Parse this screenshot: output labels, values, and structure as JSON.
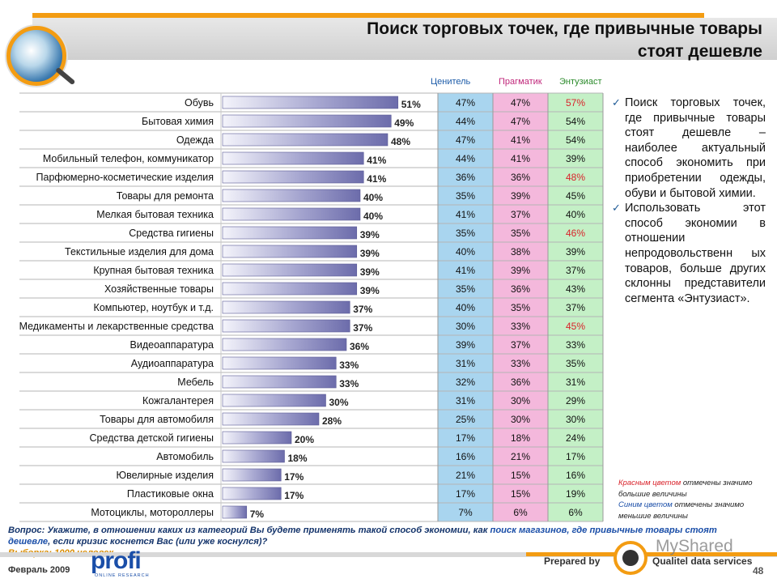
{
  "header": {
    "title_line1": "Поиск торговых точек, где привычные товары",
    "title_line2": "стоят дешевле"
  },
  "chart_data": {
    "type": "bar",
    "orientation": "horizontal",
    "columns": [
      "Ценитель",
      "Прагматик",
      "Энтузиаст"
    ],
    "column_colors": [
      "#a9d5ef",
      "#f4b8dc",
      "#c4f0c6"
    ],
    "bar_color": "#7f7fb7",
    "highlight_color": "#d9232b",
    "rows": [
      {
        "category": "Обувь",
        "value": 51,
        "label": "51%",
        "segments": [
          "47%",
          "47%",
          "57%"
        ],
        "highlight": [
          false,
          false,
          true
        ]
      },
      {
        "category": "Бытовая химия",
        "value": 49,
        "label": "49%",
        "segments": [
          "44%",
          "47%",
          "54%"
        ],
        "highlight": [
          false,
          false,
          false
        ]
      },
      {
        "category": "Одежда",
        "value": 48,
        "label": "48%",
        "segments": [
          "47%",
          "41%",
          "54%"
        ],
        "highlight": [
          false,
          false,
          false
        ]
      },
      {
        "category": "Мобильный телефон, коммуникатор",
        "value": 41,
        "label": "41%",
        "segments": [
          "44%",
          "41%",
          "39%"
        ],
        "highlight": [
          false,
          false,
          false
        ]
      },
      {
        "category": "Парфюмерно-косметические изделия",
        "value": 41,
        "label": "41%",
        "segments": [
          "36%",
          "36%",
          "48%"
        ],
        "highlight": [
          false,
          false,
          true
        ]
      },
      {
        "category": "Товары для ремонта",
        "value": 40,
        "label": "40%",
        "segments": [
          "35%",
          "39%",
          "45%"
        ],
        "highlight": [
          false,
          false,
          false
        ]
      },
      {
        "category": "Мелкая бытовая техника",
        "value": 40,
        "label": "40%",
        "segments": [
          "41%",
          "37%",
          "40%"
        ],
        "highlight": [
          false,
          false,
          false
        ]
      },
      {
        "category": "Средства гигиены",
        "value": 39,
        "label": "39%",
        "segments": [
          "35%",
          "35%",
          "46%"
        ],
        "highlight": [
          false,
          false,
          true
        ]
      },
      {
        "category": "Текстильные изделия для дома",
        "value": 39,
        "label": "39%",
        "segments": [
          "40%",
          "38%",
          "39%"
        ],
        "highlight": [
          false,
          false,
          false
        ]
      },
      {
        "category": "Крупная бытовая техника",
        "value": 39,
        "label": "39%",
        "segments": [
          "41%",
          "39%",
          "37%"
        ],
        "highlight": [
          false,
          false,
          false
        ]
      },
      {
        "category": "Хозяйственные товары",
        "value": 39,
        "label": "39%",
        "segments": [
          "35%",
          "36%",
          "43%"
        ],
        "highlight": [
          false,
          false,
          false
        ]
      },
      {
        "category": "Компьютер, ноутбук и т.д.",
        "value": 37,
        "label": "37%",
        "segments": [
          "40%",
          "35%",
          "37%"
        ],
        "highlight": [
          false,
          false,
          false
        ]
      },
      {
        "category": "Медикаменты и лекарственные средства",
        "value": 37,
        "label": "37%",
        "segments": [
          "30%",
          "33%",
          "45%"
        ],
        "highlight": [
          false,
          false,
          true
        ]
      },
      {
        "category": "Видеоаппаратура",
        "value": 36,
        "label": "36%",
        "segments": [
          "39%",
          "37%",
          "33%"
        ],
        "highlight": [
          false,
          false,
          false
        ]
      },
      {
        "category": "Аудиоаппаратура",
        "value": 33,
        "label": "33%",
        "segments": [
          "31%",
          "33%",
          "35%"
        ],
        "highlight": [
          false,
          false,
          false
        ]
      },
      {
        "category": "Мебель",
        "value": 33,
        "label": "33%",
        "segments": [
          "32%",
          "36%",
          "31%"
        ],
        "highlight": [
          false,
          false,
          false
        ]
      },
      {
        "category": "Кожгалантерея",
        "value": 30,
        "label": "30%",
        "segments": [
          "31%",
          "30%",
          "29%"
        ],
        "highlight": [
          false,
          false,
          false
        ]
      },
      {
        "category": "Товары для автомобиля",
        "value": 28,
        "label": "28%",
        "segments": [
          "25%",
          "30%",
          "30%"
        ],
        "highlight": [
          false,
          false,
          false
        ]
      },
      {
        "category": "Средства детской гигиены",
        "value": 20,
        "label": "20%",
        "segments": [
          "17%",
          "18%",
          "24%"
        ],
        "highlight": [
          false,
          false,
          false
        ]
      },
      {
        "category": "Автомобиль",
        "value": 18,
        "label": "18%",
        "segments": [
          "16%",
          "21%",
          "17%"
        ],
        "highlight": [
          false,
          false,
          false
        ]
      },
      {
        "category": "Ювелирные изделия",
        "value": 17,
        "label": "17%",
        "segments": [
          "21%",
          "15%",
          "16%"
        ],
        "highlight": [
          false,
          false,
          false
        ]
      },
      {
        "category": "Пластиковые окна",
        "value": 17,
        "label": "17%",
        "segments": [
          "17%",
          "15%",
          "19%"
        ],
        "highlight": [
          false,
          false,
          false
        ]
      },
      {
        "category": "Мотоциклы, мотороллеры",
        "value": 7,
        "label": "7%",
        "segments": [
          "7%",
          "6%",
          "6%"
        ],
        "highlight": [
          false,
          false,
          false
        ]
      }
    ]
  },
  "sidebar": {
    "bullet1": "Поиск торговых точек, где привычные товары стоят дешевле – наиболее актуальный способ экономить при приобретении одежды, обуви и бытовой химии.",
    "bullet2": "Использовать этот способ экономии в отношении непродовольственн ых товаров, больше других склонны представители сегмента «Энтузиаст»."
  },
  "legend_note": {
    "red_word": "Красным цветом",
    "red_rest": " отмечены значимо большие величины",
    "blue_word": "Синим цветом",
    "blue_rest": " отмечены значимо меньшие величины"
  },
  "footer": {
    "question_a": "Вопрос: Укажите, в отношении каких из категорий Вы будете применять такой способ экономии, как ",
    "question_hl": "поиск магазинов, где привычные товары стоят дешевле",
    "question_b": ", если кризис коснется Вас (или уже коснулся)?",
    "sample": "Выборка: 1000 человек",
    "date": "Февраль 2009",
    "profi": "profi",
    "profi_sub": "ONLINE RESEARCH",
    "prepared": "Prepared by",
    "qualitel": "Qualitel data services",
    "watermark": "MyShared",
    "page": "48"
  }
}
